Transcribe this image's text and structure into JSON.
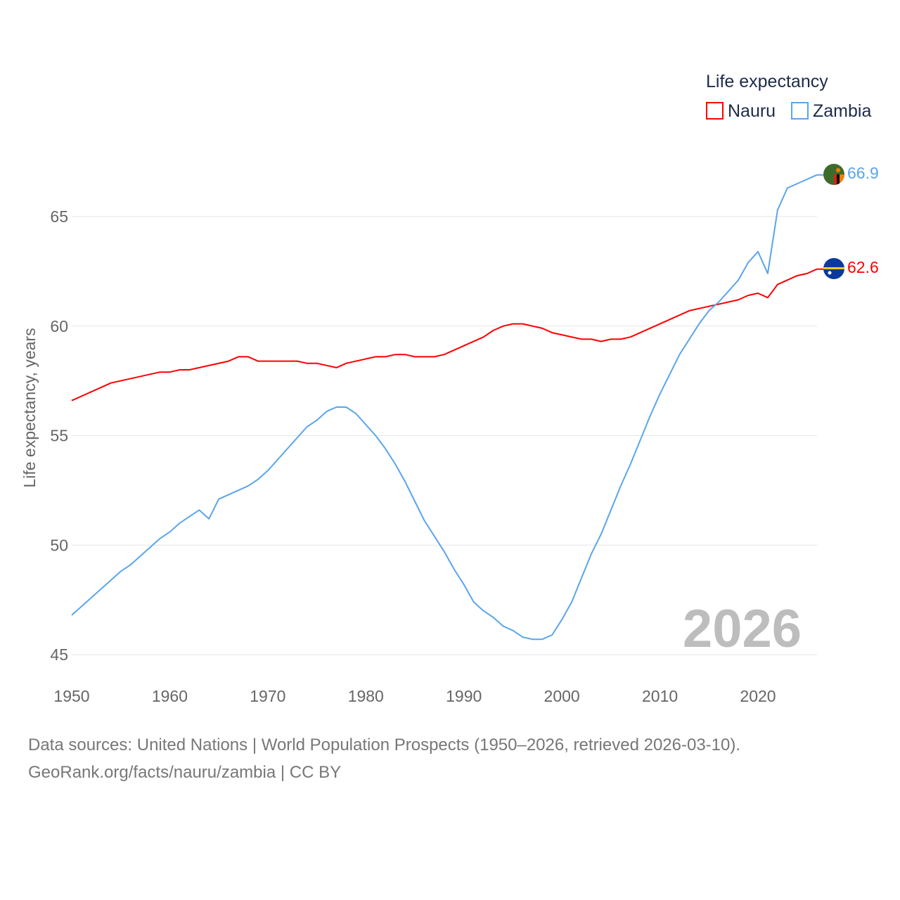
{
  "chart_data": {
    "type": "line",
    "title": "Life expectancy",
    "xlabel": "",
    "ylabel": "Life expectancy, years",
    "xlim": [
      1950,
      2026
    ],
    "ylim": [
      45,
      68
    ],
    "x_ticks": [
      "1950",
      "1960",
      "1970",
      "1980",
      "1990",
      "2000",
      "2010",
      "2020"
    ],
    "y_ticks": [
      "45",
      "50",
      "55",
      "60",
      "65"
    ],
    "grid": true,
    "legend_placement": "top-right",
    "year_label": "2026",
    "series": [
      {
        "name": "Nauru",
        "color": "#ff0000",
        "end_label": "62.6",
        "points": [
          [
            1950,
            56.6
          ],
          [
            1954,
            57.4
          ],
          [
            1959,
            57.9
          ],
          [
            1960,
            57.9
          ],
          [
            1961,
            58.0
          ],
          [
            1962,
            58.0
          ],
          [
            1966,
            58.4
          ],
          [
            1967,
            58.6
          ],
          [
            1968,
            58.6
          ],
          [
            1969,
            58.4
          ],
          [
            1973,
            58.4
          ],
          [
            1974,
            58.3
          ],
          [
            1975,
            58.3
          ],
          [
            1977,
            58.1
          ],
          [
            1978,
            58.3
          ],
          [
            1981,
            58.6
          ],
          [
            1982,
            58.6
          ],
          [
            1983,
            58.7
          ],
          [
            1984,
            58.7
          ],
          [
            1985,
            58.6
          ],
          [
            1987,
            58.6
          ],
          [
            1988,
            58.7
          ],
          [
            1992,
            59.5
          ],
          [
            1993,
            59.8
          ],
          [
            1994,
            60.0
          ],
          [
            1995,
            60.1
          ],
          [
            1996,
            60.1
          ],
          [
            1998,
            59.9
          ],
          [
            1999,
            59.7
          ],
          [
            2002,
            59.4
          ],
          [
            2003,
            59.4
          ],
          [
            2004,
            59.3
          ],
          [
            2005,
            59.4
          ],
          [
            2006,
            59.4
          ],
          [
            2007,
            59.5
          ],
          [
            2013,
            60.7
          ],
          [
            2017,
            61.1
          ],
          [
            2018,
            61.2
          ],
          [
            2019,
            61.4
          ],
          [
            2020,
            61.5
          ],
          [
            2021,
            61.3
          ],
          [
            2022,
            61.9
          ],
          [
            2024,
            62.3
          ],
          [
            2025,
            62.4
          ],
          [
            2026,
            62.6
          ]
        ]
      },
      {
        "name": "Zambia",
        "color": "#5aa5ec",
        "end_label": "66.9",
        "points": [
          [
            1950,
            46.8
          ],
          [
            1955,
            48.8
          ],
          [
            1956,
            49.1
          ],
          [
            1959,
            50.3
          ],
          [
            1960,
            50.6
          ],
          [
            1961,
            51.0
          ],
          [
            1963,
            51.6
          ],
          [
            1964,
            51.2
          ],
          [
            1965,
            52.1
          ],
          [
            1968,
            52.7
          ],
          [
            1969,
            53.0
          ],
          [
            1970,
            53.4
          ],
          [
            1974,
            55.4
          ],
          [
            1975,
            55.7
          ],
          [
            1976,
            56.1
          ],
          [
            1977,
            56.3
          ],
          [
            1978,
            56.3
          ],
          [
            1979,
            56.0
          ],
          [
            1980,
            55.5
          ],
          [
            1981,
            55.0
          ],
          [
            1982,
            54.4
          ],
          [
            1983,
            53.7
          ],
          [
            1984,
            52.9
          ],
          [
            1985,
            52.0
          ],
          [
            1986,
            51.1
          ],
          [
            1987,
            50.4
          ],
          [
            1988,
            49.7
          ],
          [
            1989,
            48.9
          ],
          [
            1990,
            48.2
          ],
          [
            1991,
            47.4
          ],
          [
            1992,
            47.0
          ],
          [
            1993,
            46.7
          ],
          [
            1994,
            46.3
          ],
          [
            1995,
            46.1
          ],
          [
            1996,
            45.8
          ],
          [
            1997,
            45.7
          ],
          [
            1998,
            45.7
          ],
          [
            1999,
            45.9
          ],
          [
            2000,
            46.6
          ],
          [
            2001,
            47.4
          ],
          [
            2002,
            48.5
          ],
          [
            2003,
            49.6
          ],
          [
            2004,
            50.5
          ],
          [
            2005,
            51.6
          ],
          [
            2006,
            52.7
          ],
          [
            2007,
            53.7
          ],
          [
            2008,
            54.8
          ],
          [
            2009,
            55.9
          ],
          [
            2010,
            56.9
          ],
          [
            2011,
            57.8
          ],
          [
            2012,
            58.7
          ],
          [
            2013,
            59.4
          ],
          [
            2014,
            60.1
          ],
          [
            2015,
            60.7
          ],
          [
            2016,
            61.1
          ],
          [
            2017,
            61.6
          ],
          [
            2018,
            62.1
          ],
          [
            2019,
            62.9
          ],
          [
            2020,
            63.4
          ],
          [
            2021,
            62.4
          ],
          [
            2022,
            65.3
          ],
          [
            2023,
            66.3
          ],
          [
            2026,
            66.9
          ]
        ]
      }
    ]
  },
  "footer": {
    "sources": "Data sources: United Nations | World Population Prospects (1950–2026, retrieved 2026-03-10).",
    "credit": "GeoRank.org/facts/nauru/zambia | CC BY"
  }
}
